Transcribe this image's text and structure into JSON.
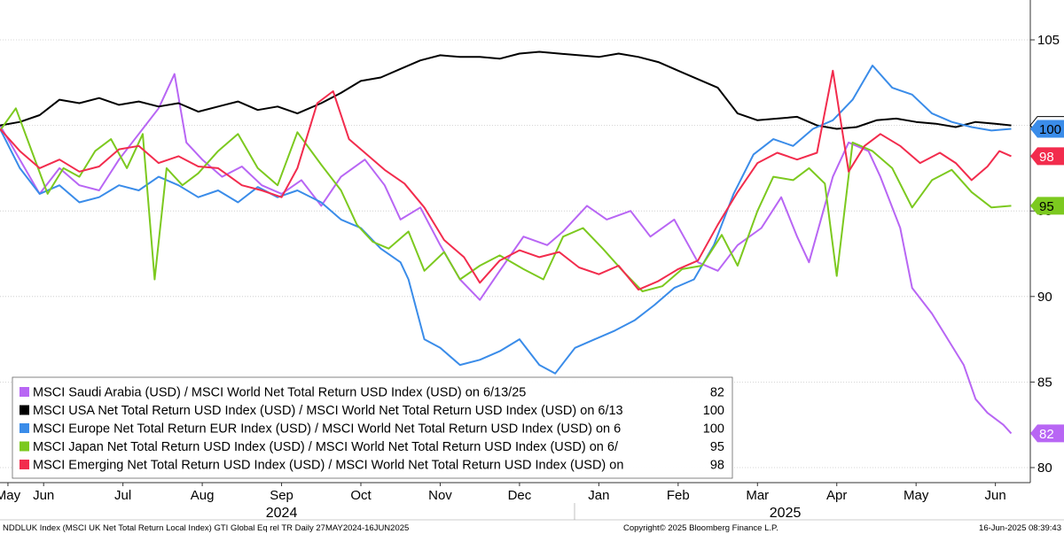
{
  "chart_data": {
    "type": "line",
    "title": "",
    "xlabel": "",
    "ylabel": "",
    "ylim": [
      79.5,
      106.5
    ],
    "xlim": [
      0,
      12.8
    ],
    "y_ticks": [
      80,
      85,
      90,
      95,
      100,
      105
    ],
    "x_ticks": [
      {
        "label": "May",
        "x": 0.1
      },
      {
        "label": "Jun",
        "x": 0.55
      },
      {
        "label": "Jul",
        "x": 1.55
      },
      {
        "label": "Aug",
        "x": 2.55
      },
      {
        "label": "Sep",
        "x": 3.55
      },
      {
        "label": "Oct",
        "x": 4.55
      },
      {
        "label": "Nov",
        "x": 5.55
      },
      {
        "label": "Dec",
        "x": 6.55
      },
      {
        "label": "Jan",
        "x": 7.55
      },
      {
        "label": "Feb",
        "x": 8.55
      },
      {
        "label": "Mar",
        "x": 9.55
      },
      {
        "label": "Apr",
        "x": 10.55
      },
      {
        "label": "May",
        "x": 11.55
      },
      {
        "label": "Jun",
        "x": 12.55
      }
    ],
    "years": [
      {
        "label": "2024",
        "x": 3.55
      },
      {
        "label": "2025",
        "x": 9.9
      }
    ],
    "series": [
      {
        "name": "MSCI Saudi Arabia (USD) / MSCI World Net Total Return USD Index (USD) on 6/13/25",
        "value_label": "82",
        "last": 82,
        "color": "#b866f4",
        "points": [
          [
            0,
            100
          ],
          [
            0.25,
            98
          ],
          [
            0.5,
            96
          ],
          [
            0.75,
            97.5
          ],
          [
            1,
            96.5
          ],
          [
            1.25,
            96.2
          ],
          [
            1.5,
            98
          ],
          [
            1.75,
            99.5
          ],
          [
            2,
            101
          ],
          [
            2.2,
            103
          ],
          [
            2.35,
            99
          ],
          [
            2.55,
            98
          ],
          [
            2.8,
            97
          ],
          [
            3.05,
            97.6
          ],
          [
            3.3,
            96.5
          ],
          [
            3.55,
            96
          ],
          [
            3.8,
            96.8
          ],
          [
            4.05,
            95.3
          ],
          [
            4.3,
            97
          ],
          [
            4.6,
            98
          ],
          [
            4.85,
            96.5
          ],
          [
            5.05,
            94.5
          ],
          [
            5.3,
            95.2
          ],
          [
            5.55,
            93
          ],
          [
            5.8,
            91
          ],
          [
            6.05,
            89.8
          ],
          [
            6.3,
            91.5
          ],
          [
            6.6,
            93.5
          ],
          [
            6.9,
            93
          ],
          [
            7.1,
            93.8
          ],
          [
            7.4,
            95.3
          ],
          [
            7.65,
            94.5
          ],
          [
            7.95,
            95
          ],
          [
            8.2,
            93.5
          ],
          [
            8.5,
            94.5
          ],
          [
            8.8,
            92
          ],
          [
            9.05,
            91.5
          ],
          [
            9.3,
            93
          ],
          [
            9.6,
            94
          ],
          [
            9.85,
            95.8
          ],
          [
            10.05,
            93.5
          ],
          [
            10.2,
            92
          ],
          [
            10.5,
            97
          ],
          [
            10.7,
            99
          ],
          [
            10.95,
            98.5
          ],
          [
            11.1,
            97
          ],
          [
            11.35,
            94
          ],
          [
            11.5,
            90.5
          ],
          [
            11.75,
            89
          ],
          [
            11.95,
            87.5
          ],
          [
            12.15,
            86
          ],
          [
            12.3,
            84
          ],
          [
            12.45,
            83.2
          ],
          [
            12.65,
            82.5
          ],
          [
            12.75,
            82
          ]
        ]
      },
      {
        "name": "MSCI USA Net Total Return USD Index (USD) / MSCI World Net Total Return USD Index (USD) on 6/13",
        "value_label": "100",
        "last": 100,
        "color": "#000000",
        "points": [
          [
            0,
            100
          ],
          [
            0.25,
            100.2
          ],
          [
            0.5,
            100.6
          ],
          [
            0.75,
            101.5
          ],
          [
            1,
            101.3
          ],
          [
            1.25,
            101.6
          ],
          [
            1.5,
            101.2
          ],
          [
            1.75,
            101.4
          ],
          [
            2,
            101.1
          ],
          [
            2.25,
            101.3
          ],
          [
            2.5,
            100.8
          ],
          [
            2.75,
            101.1
          ],
          [
            3,
            101.4
          ],
          [
            3.25,
            100.9
          ],
          [
            3.5,
            101.1
          ],
          [
            3.75,
            100.7
          ],
          [
            4.05,
            101.3
          ],
          [
            4.3,
            101.9
          ],
          [
            4.55,
            102.6
          ],
          [
            4.8,
            102.8
          ],
          [
            5.05,
            103.3
          ],
          [
            5.3,
            103.8
          ],
          [
            5.55,
            104.1
          ],
          [
            5.8,
            104
          ],
          [
            6.05,
            104
          ],
          [
            6.3,
            103.9
          ],
          [
            6.55,
            104.2
          ],
          [
            6.8,
            104.3
          ],
          [
            7.05,
            104.2
          ],
          [
            7.3,
            104.1
          ],
          [
            7.55,
            104
          ],
          [
            7.8,
            104.2
          ],
          [
            8.05,
            104
          ],
          [
            8.3,
            103.7
          ],
          [
            8.55,
            103.2
          ],
          [
            8.8,
            102.7
          ],
          [
            9.05,
            102.2
          ],
          [
            9.3,
            100.7
          ],
          [
            9.55,
            100.3
          ],
          [
            9.8,
            100.4
          ],
          [
            10.05,
            100.5
          ],
          [
            10.3,
            100
          ],
          [
            10.55,
            99.8
          ],
          [
            10.8,
            99.9
          ],
          [
            11.05,
            100.3
          ],
          [
            11.3,
            100.4
          ],
          [
            11.55,
            100.2
          ],
          [
            11.8,
            100.1
          ],
          [
            12.05,
            99.9
          ],
          [
            12.3,
            100.2
          ],
          [
            12.55,
            100.1
          ],
          [
            12.75,
            100
          ]
        ]
      },
      {
        "name": "MSCI Europe Net Total Return EUR Index (USD) / MSCI World Net Total Return USD Index (USD) on 6",
        "value_label": "100",
        "last": 99.8,
        "color": "#3a8ce9",
        "points": [
          [
            0,
            99.8
          ],
          [
            0.25,
            97.5
          ],
          [
            0.5,
            96
          ],
          [
            0.75,
            96.5
          ],
          [
            1,
            95.5
          ],
          [
            1.25,
            95.8
          ],
          [
            1.5,
            96.5
          ],
          [
            1.75,
            96.2
          ],
          [
            2,
            97
          ],
          [
            2.25,
            96.5
          ],
          [
            2.5,
            95.8
          ],
          [
            2.75,
            96.2
          ],
          [
            3,
            95.5
          ],
          [
            3.25,
            96.4
          ],
          [
            3.5,
            95.8
          ],
          [
            3.75,
            96.2
          ],
          [
            4.05,
            95.5
          ],
          [
            4.3,
            94.5
          ],
          [
            4.55,
            94
          ],
          [
            4.8,
            92.8
          ],
          [
            5.05,
            92
          ],
          [
            5.15,
            91
          ],
          [
            5.35,
            87.5
          ],
          [
            5.55,
            87
          ],
          [
            5.8,
            86
          ],
          [
            6.05,
            86.3
          ],
          [
            6.3,
            86.8
          ],
          [
            6.55,
            87.5
          ],
          [
            6.8,
            86
          ],
          [
            7,
            85.5
          ],
          [
            7.25,
            87
          ],
          [
            7.5,
            87.5
          ],
          [
            7.75,
            88
          ],
          [
            8,
            88.6
          ],
          [
            8.25,
            89.5
          ],
          [
            8.5,
            90.5
          ],
          [
            8.75,
            91
          ],
          [
            9.0,
            93
          ],
          [
            9.25,
            96
          ],
          [
            9.5,
            98.3
          ],
          [
            9.75,
            99.2
          ],
          [
            10.0,
            98.8
          ],
          [
            10.25,
            99.8
          ],
          [
            10.5,
            100.3
          ],
          [
            10.75,
            101.5
          ],
          [
            11.0,
            103.5
          ],
          [
            11.25,
            102.2
          ],
          [
            11.5,
            101.8
          ],
          [
            11.75,
            100.7
          ],
          [
            12.0,
            100.2
          ],
          [
            12.25,
            99.9
          ],
          [
            12.5,
            99.7
          ],
          [
            12.75,
            99.8
          ]
        ]
      },
      {
        "name": "MSCI Japan Net Total Return USD Index (USD) / MSCI World Net Total Return USD Index (USD) on 6/",
        "value_label": "95",
        "last": 95.3,
        "color": "#7cc91f",
        "points": [
          [
            0,
            99.7
          ],
          [
            0.2,
            101
          ],
          [
            0.4,
            98.5
          ],
          [
            0.6,
            96
          ],
          [
            0.8,
            97.5
          ],
          [
            1,
            97
          ],
          [
            1.2,
            98.5
          ],
          [
            1.4,
            99.2
          ],
          [
            1.6,
            97.5
          ],
          [
            1.8,
            99.5
          ],
          [
            1.95,
            91
          ],
          [
            2.1,
            97.5
          ],
          [
            2.3,
            96.5
          ],
          [
            2.5,
            97.2
          ],
          [
            2.75,
            98.5
          ],
          [
            3.0,
            99.5
          ],
          [
            3.25,
            97.5
          ],
          [
            3.5,
            96.5
          ],
          [
            3.75,
            99.6
          ],
          [
            4.05,
            97.7
          ],
          [
            4.3,
            96.2
          ],
          [
            4.5,
            94.2
          ],
          [
            4.7,
            93.2
          ],
          [
            4.9,
            92.8
          ],
          [
            5.15,
            93.8
          ],
          [
            5.35,
            91.5
          ],
          [
            5.6,
            92.6
          ],
          [
            5.8,
            91
          ],
          [
            6.05,
            91.8
          ],
          [
            6.3,
            92.4
          ],
          [
            6.6,
            91.6
          ],
          [
            6.85,
            91
          ],
          [
            7.1,
            93.5
          ],
          [
            7.35,
            94
          ],
          [
            7.6,
            92.8
          ],
          [
            7.85,
            91.5
          ],
          [
            8.1,
            90.3
          ],
          [
            8.35,
            90.6
          ],
          [
            8.6,
            91.6
          ],
          [
            8.85,
            91.8
          ],
          [
            9.1,
            93.6
          ],
          [
            9.3,
            91.8
          ],
          [
            9.55,
            95
          ],
          [
            9.75,
            97
          ],
          [
            10.0,
            96.8
          ],
          [
            10.2,
            97.5
          ],
          [
            10.4,
            96.6
          ],
          [
            10.55,
            91.2
          ],
          [
            10.75,
            99
          ],
          [
            11.0,
            98.5
          ],
          [
            11.25,
            97.5
          ],
          [
            11.5,
            95.2
          ],
          [
            11.75,
            96.8
          ],
          [
            12.0,
            97.4
          ],
          [
            12.25,
            96.1
          ],
          [
            12.5,
            95.2
          ],
          [
            12.75,
            95.3
          ]
        ]
      },
      {
        "name": "MSCI Emerging Net Total Return USD Index (USD) / MSCI World Net Total Return USD Index (USD) on",
        "value_label": "98",
        "last": 98.2,
        "color": "#f22c4d",
        "points": [
          [
            0,
            99.8
          ],
          [
            0.25,
            98.5
          ],
          [
            0.5,
            97.5
          ],
          [
            0.75,
            98
          ],
          [
            1,
            97.3
          ],
          [
            1.25,
            97.6
          ],
          [
            1.5,
            98.6
          ],
          [
            1.75,
            98.8
          ],
          [
            2,
            97.8
          ],
          [
            2.25,
            98.2
          ],
          [
            2.5,
            97.6
          ],
          [
            2.75,
            97.5
          ],
          [
            3.05,
            96.5
          ],
          [
            3.3,
            96.2
          ],
          [
            3.55,
            95.8
          ],
          [
            3.75,
            97.5
          ],
          [
            4.0,
            101.3
          ],
          [
            4.2,
            102
          ],
          [
            4.4,
            99.2
          ],
          [
            4.6,
            98.4
          ],
          [
            4.85,
            97.4
          ],
          [
            5.1,
            96.6
          ],
          [
            5.35,
            95.2
          ],
          [
            5.6,
            93.3
          ],
          [
            5.85,
            92.3
          ],
          [
            6.05,
            90.8
          ],
          [
            6.3,
            92.1
          ],
          [
            6.55,
            92.7
          ],
          [
            6.8,
            92.3
          ],
          [
            7.05,
            92.6
          ],
          [
            7.3,
            91.7
          ],
          [
            7.55,
            91.3
          ],
          [
            7.8,
            91.8
          ],
          [
            8.05,
            90.4
          ],
          [
            8.3,
            90.9
          ],
          [
            8.55,
            91.6
          ],
          [
            8.8,
            92.1
          ],
          [
            9.05,
            94.2
          ],
          [
            9.3,
            96.1
          ],
          [
            9.55,
            97.8
          ],
          [
            9.8,
            98.4
          ],
          [
            10.05,
            98
          ],
          [
            10.3,
            98.4
          ],
          [
            10.5,
            103.2
          ],
          [
            10.7,
            97.3
          ],
          [
            10.9,
            98.8
          ],
          [
            11.1,
            99.5
          ],
          [
            11.35,
            98.8
          ],
          [
            11.6,
            97.8
          ],
          [
            11.85,
            98.4
          ],
          [
            12.05,
            97.8
          ],
          [
            12.25,
            96.8
          ],
          [
            12.45,
            97.6
          ],
          [
            12.6,
            98.5
          ],
          [
            12.75,
            98.2
          ]
        ]
      }
    ],
    "legend_location": "bottom-left"
  },
  "footer": {
    "left": "NDDLUK Index (MSCI UK Net Total Return Local Index) GTI Global Eq rel TR  Daily 27MAY2024-16JUN2025",
    "center": "Copyright© 2025 Bloomberg Finance L.P.",
    "right": "16-Jun-2025 08:39:43"
  }
}
